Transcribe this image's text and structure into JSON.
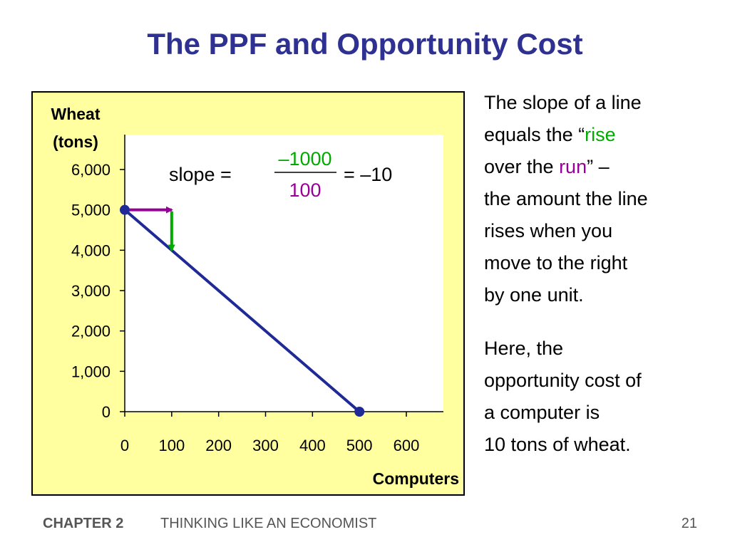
{
  "slide": {
    "title": "The PPF and Opportunity Cost",
    "paragraph1": {
      "l1": "The slope of a line",
      "l2_a": "equals the “",
      "l2_rise": "rise",
      "l3_a": "over the ",
      "l3_run": "run",
      "l3_b": "” –",
      "l4": "the amount the line",
      "l5": "rises when you",
      "l6": "move to the right",
      "l7": "by one unit."
    },
    "paragraph2": {
      "l1": "Here, the",
      "l2": "opportunity cost of",
      "l3": "a computer is",
      "l4": "10 tons of wheat."
    },
    "footer": {
      "chapter": "CHAPTER 2",
      "book": "THINKING LIKE AN ECONOMIST",
      "page": "21"
    },
    "colors": {
      "title": "#2e3192",
      "rise": "#00aa00",
      "run": "#990099",
      "panel": "#ffffa0",
      "line": "#1f2a96"
    }
  },
  "chart_data": {
    "type": "line",
    "ylabel_line1": "Wheat",
    "ylabel_line2": "(tons)",
    "xlabel": "Computers",
    "xlim": [
      0,
      600
    ],
    "ylim": [
      0,
      6000
    ],
    "x_ticks": [
      0,
      100,
      200,
      300,
      400,
      500,
      600
    ],
    "y_ticks": [
      0,
      1000,
      2000,
      3000,
      4000,
      5000,
      6000
    ],
    "x_tick_labels": [
      "0",
      "100",
      "200",
      "300",
      "400",
      "500",
      "600"
    ],
    "y_tick_labels": [
      "0",
      "1,000",
      "2,000",
      "3,000",
      "4,000",
      "5,000",
      "6,000"
    ],
    "series": [
      {
        "x": [
          0,
          500
        ],
        "y": [
          5000,
          0
        ]
      }
    ],
    "annotations": {
      "run_arrow": {
        "from": [
          0,
          5000
        ],
        "to": [
          100,
          5000
        ]
      },
      "rise_arrow": {
        "from": [
          100,
          5000
        ],
        "to": [
          100,
          4000
        ]
      },
      "slope_label": "slope =",
      "numerator": "–1000",
      "denominator": "100",
      "result": "= –10"
    }
  }
}
